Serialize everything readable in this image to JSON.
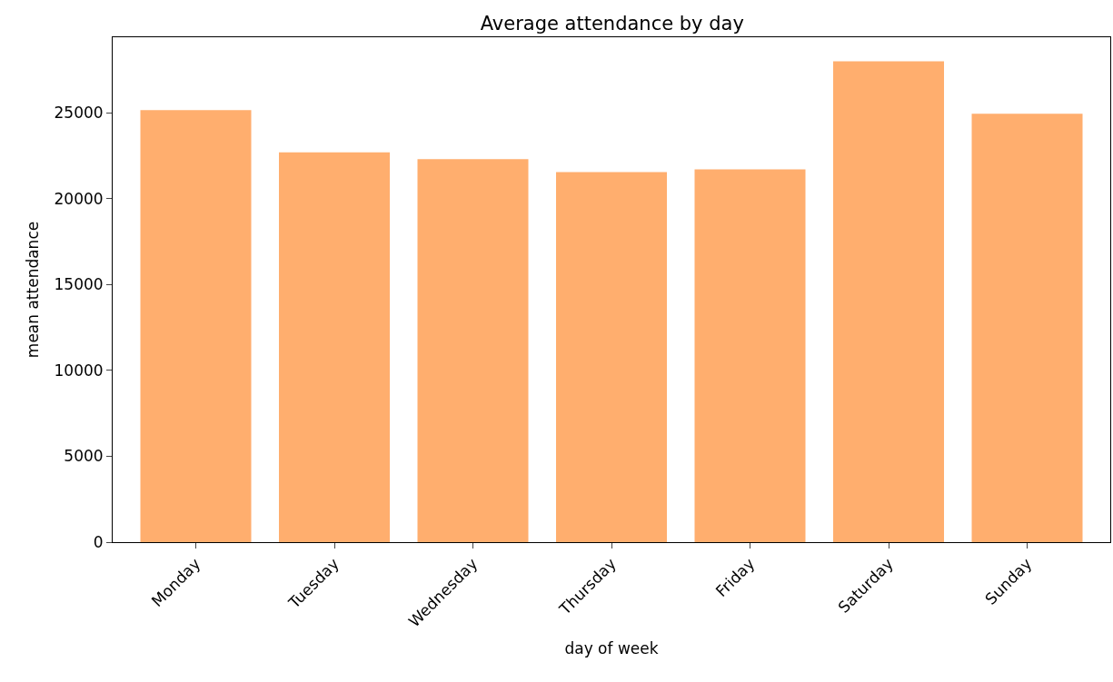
{
  "chart_data": {
    "type": "bar",
    "title": "Average attendance by day",
    "xlabel": "day of week",
    "ylabel": "mean attendance",
    "categories": [
      "Monday",
      "Tuesday",
      "Wednesday",
      "Thursday",
      "Friday",
      "Saturday",
      "Sunday"
    ],
    "values": [
      25150,
      22700,
      22300,
      21550,
      21700,
      28000,
      24950
    ],
    "color": "#ffae6e",
    "ylim": [
      0,
      29400
    ],
    "yticks": [
      0,
      5000,
      10000,
      15000,
      20000,
      25000
    ],
    "grid": false
  }
}
